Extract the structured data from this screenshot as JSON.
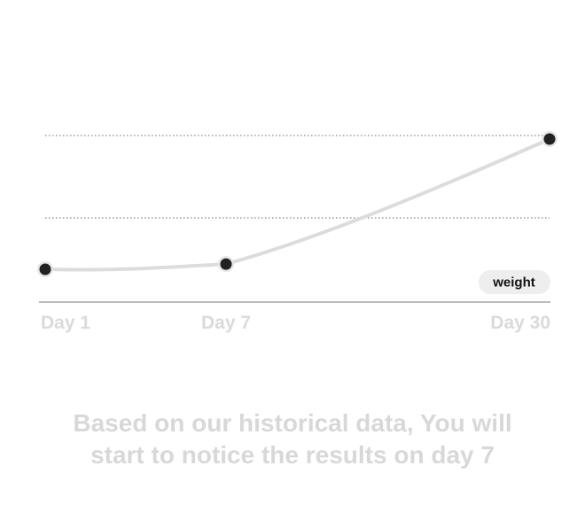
{
  "chart_data": {
    "type": "line",
    "categories": [
      "Day 1",
      "Day 7",
      "Day 30"
    ],
    "series": [
      {
        "name": "weight",
        "values": [
          1.0,
          1.1,
          3.5
        ]
      }
    ],
    "ylim": [
      0,
      3.5
    ],
    "grid": "horizontal dotted",
    "legend": "bottom-right",
    "title": "",
    "xlabel": "",
    "ylabel": ""
  },
  "caption": {
    "line1": "Based on our historical data, You will",
    "line2": "start to notice the results on day 7"
  },
  "colors": {
    "line": "#dcdcdc",
    "point": "#222222",
    "point_ring": "#e6e6e6",
    "gridline": "#888888",
    "axis": "#777777",
    "tick_label": "#dadada",
    "legend_bg": "#eeeeee",
    "caption": "#d8d8d8"
  }
}
